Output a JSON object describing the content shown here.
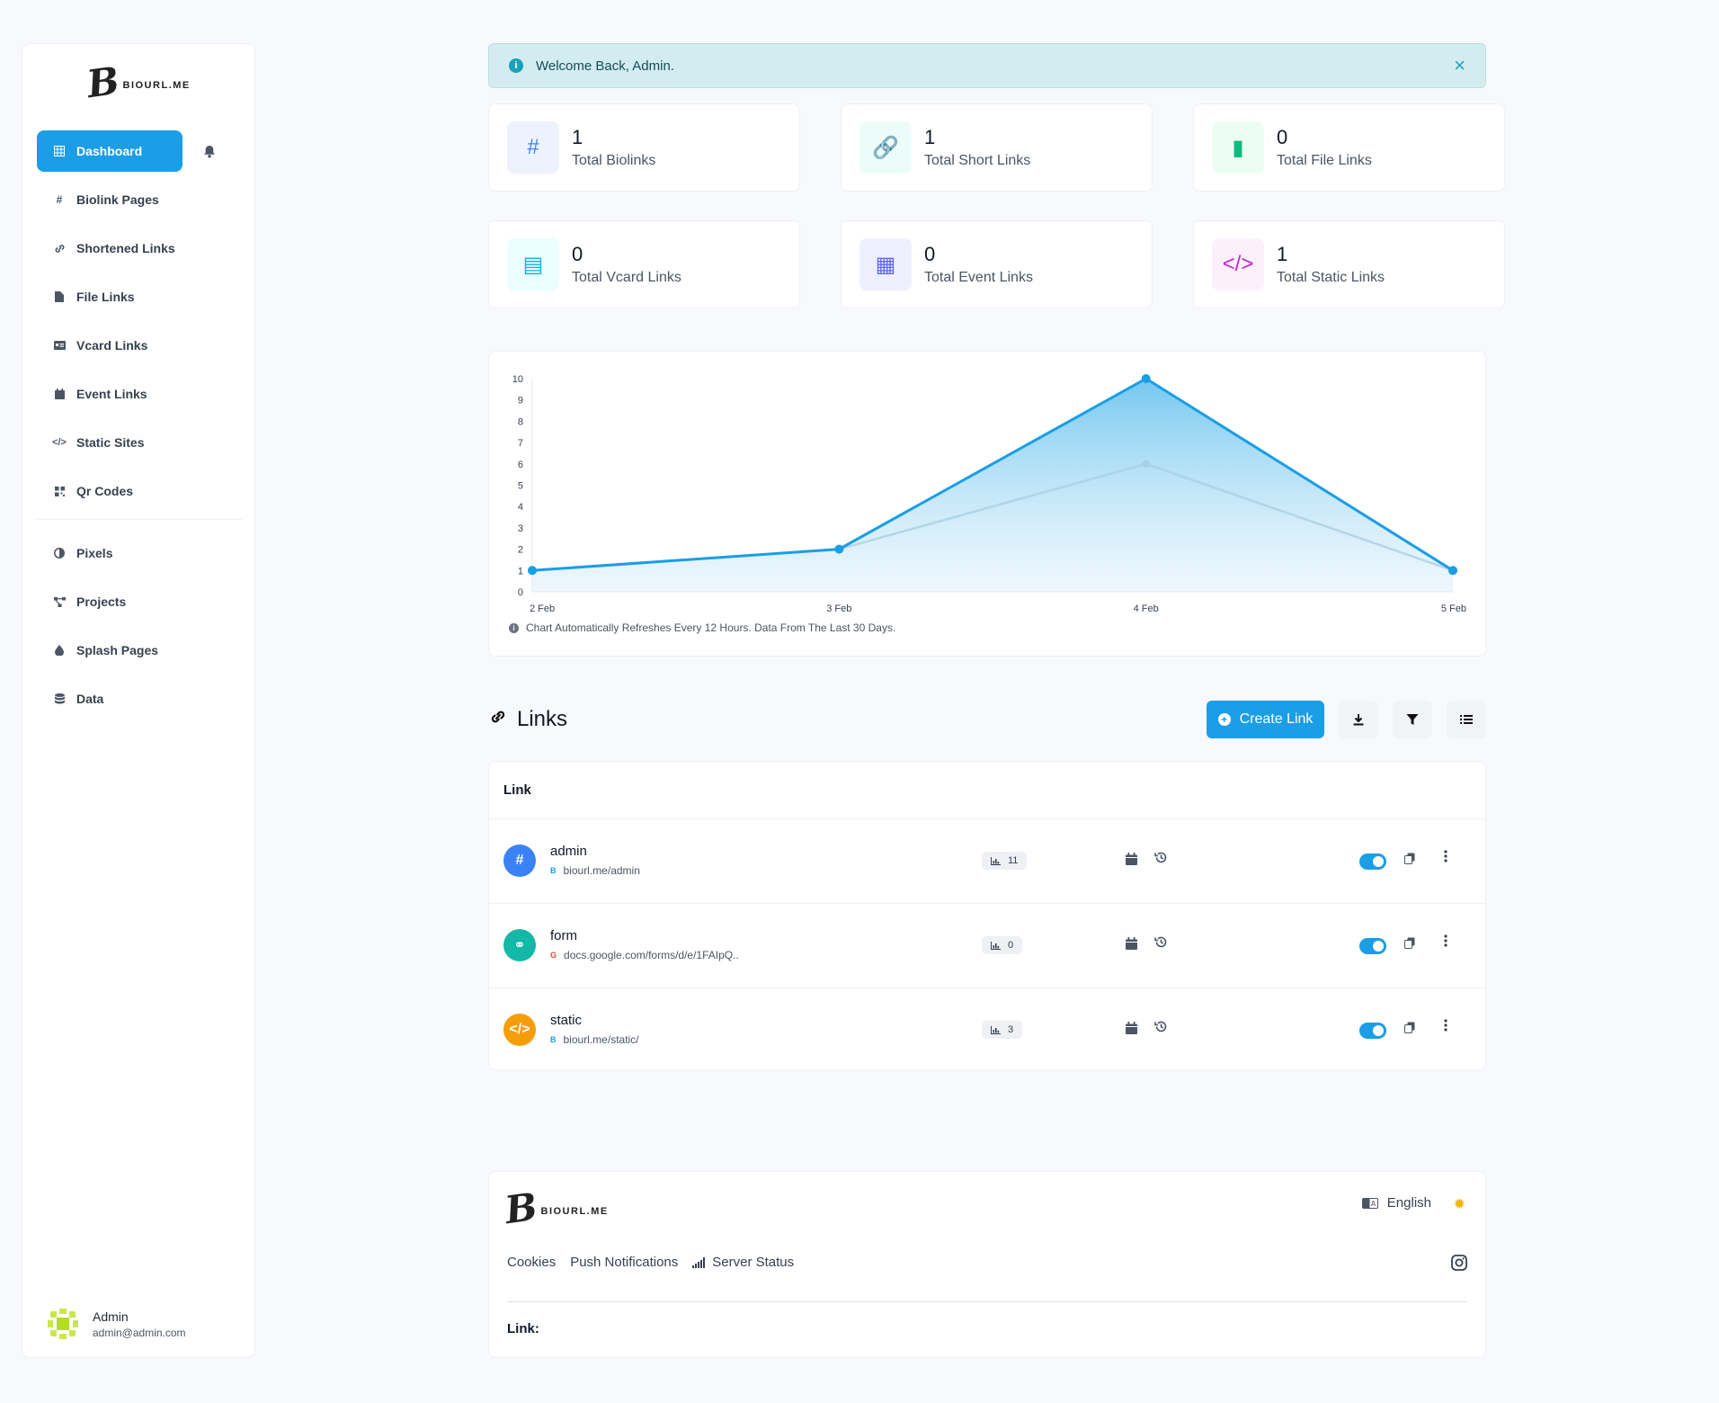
{
  "brand": {
    "name": "BIOURL.ME",
    "mark": "B"
  },
  "sidebar": {
    "items": [
      {
        "label": "Dashboard",
        "icon": "grid-icon"
      },
      {
        "label": "Biolink Pages",
        "icon": "hash-icon"
      },
      {
        "label": "Shortened Links",
        "icon": "link-icon"
      },
      {
        "label": "File Links",
        "icon": "file-icon"
      },
      {
        "label": "Vcard Links",
        "icon": "id-card-icon"
      },
      {
        "label": "Event Links",
        "icon": "calendar-icon"
      },
      {
        "label": "Static Sites",
        "icon": "code-icon"
      },
      {
        "label": "Qr Codes",
        "icon": "qr-icon"
      },
      {
        "label": "Pixels",
        "icon": "half-circle-icon"
      },
      {
        "label": "Projects",
        "icon": "project-diagram-icon"
      },
      {
        "label": "Splash Pages",
        "icon": "droplet-icon"
      },
      {
        "label": "Data",
        "icon": "database-icon"
      }
    ],
    "user": {
      "name": "Admin",
      "email": "admin@admin.com"
    }
  },
  "alert": {
    "message": "Welcome Back, Admin.",
    "close": "×",
    "info": "i"
  },
  "stats": [
    {
      "value": "1",
      "label": "Total Biolinks",
      "glyph": "#",
      "icon": "hash-icon",
      "color": "#3b82f6",
      "bg": "#eef2ff"
    },
    {
      "value": "1",
      "label": "Total Short Links",
      "glyph": "🔗",
      "icon": "link-icon",
      "color": "#14b8a6",
      "bg": "#ecfdf9"
    },
    {
      "value": "0",
      "label": "Total File Links",
      "glyph": "▮",
      "icon": "file-icon",
      "color": "#10b981",
      "bg": "#ecfdf3"
    },
    {
      "value": "0",
      "label": "Total Vcard Links",
      "glyph": "▤",
      "icon": "id-card-icon",
      "color": "#06b6d4",
      "bg": "#ecfeff"
    },
    {
      "value": "0",
      "label": "Total Event Links",
      "glyph": "▦",
      "icon": "calendar-icon",
      "color": "#6366f1",
      "bg": "#eef0ff"
    },
    {
      "value": "1",
      "label": "Total Static Links",
      "glyph": "</>",
      "icon": "code-icon",
      "color": "#c026d3",
      "bg": "#fdf0fd"
    }
  ],
  "chart_data": {
    "type": "area",
    "x": [
      "2 Feb",
      "3 Feb",
      "4 Feb",
      "5 Feb"
    ],
    "series": [
      {
        "values": [
          1,
          2,
          10,
          1
        ],
        "color": "#1a9ee6"
      },
      {
        "values": [
          1,
          2,
          6,
          1
        ],
        "color": "#a9cfe3"
      }
    ],
    "ylim": [
      0,
      10
    ],
    "yticks": [
      0,
      1,
      2,
      3,
      4,
      5,
      6,
      7,
      8,
      9,
      10
    ],
    "grid": false,
    "note": "Chart Automatically Refreshes Every 12 Hours. Data From The Last 30 Days."
  },
  "links_section": {
    "title": "Links",
    "create_label": "Create Link",
    "column_header": "Link",
    "rows": [
      {
        "name": "admin",
        "url": "biourl.me/admin",
        "clicks": "11",
        "icon": "hash-icon",
        "glyph": "#",
        "color": "#3b82f6",
        "favicon": "biourl-favicon",
        "fav_glyph": "B",
        "enabled": true
      },
      {
        "name": "form",
        "url": "docs.google.com/forms/d/e/1FAIpQ..",
        "clicks": "0",
        "icon": "link-icon",
        "glyph": "⚭",
        "color": "#14b8a6",
        "favicon": "google-favicon",
        "fav_glyph": "G",
        "enabled": true
      },
      {
        "name": "static",
        "url": "biourl.me/static/",
        "clicks": "3",
        "icon": "code-icon",
        "glyph": "</>",
        "color": "#f59e0b",
        "favicon": "biourl-favicon",
        "fav_glyph": "B",
        "enabled": true
      }
    ]
  },
  "footer": {
    "language": "English",
    "links": [
      "Cookies",
      "Push Notifications",
      "Server Status"
    ],
    "link_label": "Link:"
  }
}
